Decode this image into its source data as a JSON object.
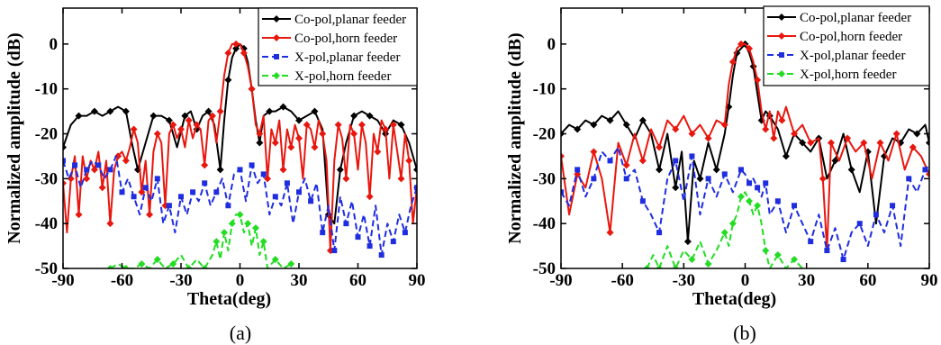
{
  "chart_data": [
    {
      "type": "line",
      "panel_label": "(a)",
      "xlabel": "Theta(deg)",
      "ylabel": "Normalized amplitude (dB)",
      "xlim": [
        -90,
        90
      ],
      "ylim": [
        -50,
        8
      ],
      "xticks": [
        -90,
        -60,
        -30,
        0,
        30,
        60,
        90
      ],
      "yticks": [
        0,
        -10,
        -20,
        -30,
        -40,
        -50
      ],
      "legend_position": "top-right",
      "series": [
        {
          "name": "Co-pol,planar feeder",
          "color": "#000000",
          "dash": "",
          "marker": "diamond",
          "x": [
            -90,
            -86,
            -82,
            -78,
            -74,
            -70,
            -66,
            -62,
            -58,
            -55,
            -52,
            -48,
            -44,
            -40,
            -36,
            -32,
            -28,
            -25,
            -22,
            -19,
            -16,
            -13,
            -10,
            -8,
            -6,
            -4,
            -2,
            0,
            2,
            4,
            6,
            8,
            10,
            12,
            15,
            18,
            22,
            26,
            30,
            34,
            38,
            42,
            45,
            48,
            51,
            54,
            58,
            62,
            66,
            70,
            74,
            78,
            82,
            86,
            90
          ],
          "y": [
            -23,
            -18,
            -16,
            -16,
            -15,
            -16,
            -15,
            -14,
            -15,
            -22,
            -28,
            -22,
            -16,
            -16,
            -17,
            -23,
            -16,
            -15,
            -19,
            -16,
            -15,
            -18,
            -28,
            -17,
            -8,
            -3,
            -1,
            0,
            -1,
            -4,
            -10,
            -17,
            -22,
            -16,
            -15,
            -15,
            -14,
            -15,
            -17,
            -16,
            -15,
            -19,
            -38,
            -40,
            -28,
            -22,
            -16,
            -15,
            -16,
            -17,
            -20,
            -17,
            -18,
            -22,
            -28
          ]
        },
        {
          "name": "Co-pol,horn feeder",
          "color": "#e8170e",
          "dash": "",
          "marker": "diamond",
          "x": [
            -90,
            -88,
            -86,
            -84,
            -82,
            -80,
            -78,
            -76,
            -74,
            -72,
            -70,
            -68,
            -66,
            -64,
            -62,
            -60,
            -58,
            -56,
            -54,
            -52,
            -50,
            -48,
            -46,
            -44,
            -42,
            -40,
            -38,
            -36,
            -34,
            -32,
            -30,
            -28,
            -26,
            -24,
            -22,
            -20,
            -18,
            -16,
            -14,
            -12,
            -10,
            -8,
            -6,
            -4,
            -2,
            0,
            2,
            4,
            6,
            8,
            10,
            12,
            14,
            16,
            18,
            20,
            22,
            24,
            26,
            28,
            30,
            32,
            34,
            36,
            38,
            40,
            42,
            44,
            46,
            48,
            50,
            52,
            54,
            56,
            58,
            60,
            62,
            64,
            66,
            68,
            70,
            72,
            74,
            76,
            78,
            80,
            82,
            84,
            86,
            88,
            90
          ],
          "y": [
            -31,
            -42,
            -30,
            -25,
            -38,
            -25,
            -30,
            -26,
            -28,
            -24,
            -32,
            -26,
            -40,
            -28,
            -25,
            -24,
            -26,
            -23,
            -19,
            -22,
            -33,
            -26,
            -38,
            -24,
            -20,
            -22,
            -36,
            -20,
            -18,
            -21,
            -19,
            -23,
            -17,
            -21,
            -18,
            -19,
            -27,
            -17,
            -16,
            -22,
            -15,
            -7,
            -2,
            0,
            0,
            0,
            -2,
            -5,
            -10,
            -18,
            -20,
            -16,
            -30,
            -19,
            -22,
            -17,
            -28,
            -19,
            -23,
            -18,
            -21,
            -30,
            -18,
            -19,
            -23,
            -17,
            -20,
            -26,
            -46,
            -26,
            -18,
            -21,
            -30,
            -18,
            -20,
            -28,
            -18,
            -22,
            -34,
            -20,
            -24,
            -17,
            -19,
            -30,
            -18,
            -24,
            -30,
            -20,
            -26,
            -40,
            -32
          ]
        },
        {
          "name": "X-pol,planar feeder",
          "color": "#1f2de0",
          "dash": "7,4",
          "marker": "square",
          "x": [
            -90,
            -87,
            -84,
            -81,
            -78,
            -75,
            -72,
            -69,
            -66,
            -63,
            -60,
            -57,
            -54,
            -51,
            -48,
            -45,
            -42,
            -39,
            -36,
            -33,
            -30,
            -27,
            -24,
            -21,
            -18,
            -15,
            -12,
            -9,
            -6,
            -3,
            0,
            3,
            6,
            9,
            12,
            15,
            18,
            21,
            24,
            27,
            30,
            33,
            36,
            39,
            42,
            45,
            48,
            51,
            54,
            57,
            60,
            63,
            66,
            69,
            72,
            75,
            78,
            81,
            84,
            87,
            90
          ],
          "y": [
            -26,
            -30,
            -27,
            -32,
            -28,
            -26,
            -27,
            -30,
            -28,
            -25,
            -33,
            -30,
            -34,
            -38,
            -32,
            -35,
            -30,
            -40,
            -36,
            -42,
            -34,
            -38,
            -33,
            -35,
            -31,
            -36,
            -33,
            -30,
            -36,
            -29,
            -28,
            -35,
            -27,
            -31,
            -29,
            -38,
            -34,
            -36,
            -31,
            -40,
            -33,
            -30,
            -35,
            -31,
            -42,
            -36,
            -46,
            -34,
            -40,
            -35,
            -43,
            -38,
            -45,
            -36,
            -47,
            -40,
            -44,
            -38,
            -42,
            -36,
            -32
          ]
        },
        {
          "name": "X-pol,horn feeder",
          "color": "#22dd22",
          "dash": "7,4",
          "marker": "diamond",
          "x": [
            -66,
            -62,
            -58,
            -54,
            -50,
            -46,
            -42,
            -38,
            -34,
            -30,
            -26,
            -22,
            -18,
            -14,
            -12,
            -10,
            -8,
            -6,
            -4,
            -2,
            0,
            2,
            4,
            6,
            8,
            10,
            12,
            14,
            18,
            22,
            26
          ],
          "y": [
            -50,
            -49,
            -50,
            -50,
            -49,
            -50,
            -48,
            -50,
            -49,
            -47,
            -50,
            -48,
            -50,
            -47,
            -44,
            -48,
            -42,
            -46,
            -40,
            -38,
            -38,
            -42,
            -40,
            -45,
            -41,
            -47,
            -44,
            -50,
            -48,
            -50,
            -49
          ]
        }
      ]
    },
    {
      "type": "line",
      "panel_label": "(b)",
      "xlabel": "Theta(deg)",
      "ylabel": "Normalized amplitude (dB)",
      "xlim": [
        -90,
        90
      ],
      "ylim": [
        -50,
        8
      ],
      "xticks": [
        -90,
        -60,
        -30,
        0,
        30,
        60,
        90
      ],
      "yticks": [
        0,
        -10,
        -20,
        -30,
        -40,
        -50
      ],
      "legend_position": "top-right",
      "series": [
        {
          "name": "Co-pol,planar feeder",
          "color": "#000000",
          "dash": "",
          "marker": "diamond",
          "x": [
            -90,
            -86,
            -82,
            -78,
            -74,
            -70,
            -66,
            -62,
            -58,
            -54,
            -50,
            -46,
            -42,
            -38,
            -34,
            -31,
            -28,
            -25,
            -22,
            -18,
            -14,
            -10,
            -8,
            -6,
            -4,
            -2,
            0,
            2,
            4,
            6,
            8,
            10,
            12,
            16,
            20,
            24,
            28,
            32,
            36,
            40,
            44,
            48,
            52,
            56,
            60,
            64,
            68,
            72,
            76,
            80,
            84,
            88,
            90
          ],
          "y": [
            -20,
            -18,
            -19,
            -17,
            -18,
            -16,
            -17,
            -15,
            -18,
            -21,
            -17,
            -20,
            -28,
            -20,
            -32,
            -24,
            -44,
            -26,
            -30,
            -22,
            -28,
            -20,
            -14,
            -7,
            -2,
            -1,
            0,
            -2,
            -5,
            -11,
            -17,
            -15,
            -16,
            -19,
            -25,
            -20,
            -22,
            -24,
            -21,
            -30,
            -26,
            -20,
            -28,
            -33,
            -24,
            -40,
            -25,
            -21,
            -22,
            -19,
            -20,
            -18,
            -22
          ]
        },
        {
          "name": "Co-pol,horn feeder",
          "color": "#e8170e",
          "dash": "",
          "marker": "diamond",
          "x": [
            -90,
            -86,
            -82,
            -78,
            -74,
            -70,
            -66,
            -62,
            -58,
            -54,
            -50,
            -46,
            -42,
            -38,
            -34,
            -30,
            -26,
            -22,
            -18,
            -14,
            -10,
            -8,
            -6,
            -4,
            -2,
            0,
            2,
            4,
            6,
            8,
            10,
            12,
            14,
            16,
            18,
            20,
            24,
            28,
            32,
            36,
            38,
            40,
            42,
            46,
            50,
            54,
            58,
            62,
            66,
            70,
            74,
            78,
            82,
            86,
            90
          ],
          "y": [
            -25,
            -38,
            -29,
            -32,
            -24,
            -30,
            -42,
            -22,
            -27,
            -20,
            -26,
            -19,
            -23,
            -17,
            -19,
            -16,
            -20,
            -18,
            -21,
            -17,
            -18,
            -9,
            -4,
            -1,
            0,
            0,
            -1,
            -4,
            -8,
            -15,
            -19,
            -15,
            -21,
            -15,
            -17,
            -14,
            -20,
            -18,
            -22,
            -21,
            -30,
            -46,
            -22,
            -26,
            -21,
            -24,
            -22,
            -30,
            -22,
            -26,
            -20,
            -28,
            -23,
            -25,
            -29
          ]
        },
        {
          "name": "X-pol,planar feeder",
          "color": "#1f2de0",
          "dash": "7,4",
          "marker": "square",
          "x": [
            -90,
            -86,
            -82,
            -78,
            -74,
            -70,
            -66,
            -62,
            -58,
            -54,
            -50,
            -46,
            -42,
            -38,
            -34,
            -30,
            -26,
            -22,
            -18,
            -14,
            -10,
            -6,
            -2,
            0,
            2,
            4,
            6,
            8,
            10,
            12,
            16,
            20,
            24,
            28,
            32,
            36,
            40,
            44,
            48,
            52,
            56,
            60,
            64,
            68,
            72,
            76,
            80,
            84,
            88,
            90
          ],
          "y": [
            -33,
            -36,
            -28,
            -34,
            -30,
            -24,
            -26,
            -23,
            -30,
            -28,
            -35,
            -38,
            -42,
            -30,
            -26,
            -35,
            -25,
            -38,
            -30,
            -34,
            -29,
            -33,
            -28,
            -29,
            -31,
            -30,
            -32,
            -34,
            -31,
            -38,
            -35,
            -42,
            -36,
            -40,
            -44,
            -38,
            -46,
            -41,
            -48,
            -42,
            -40,
            -45,
            -38,
            -42,
            -36,
            -45,
            -30,
            -33,
            -28,
            -27
          ]
        },
        {
          "name": "X-pol,horn feeder",
          "color": "#22dd22",
          "dash": "7,4",
          "marker": "diamond",
          "x": [
            -48,
            -45,
            -42,
            -38,
            -34,
            -30,
            -26,
            -22,
            -18,
            -14,
            -10,
            -8,
            -6,
            -4,
            -2,
            0,
            2,
            4,
            6,
            8,
            10,
            12,
            16,
            20,
            24,
            28
          ],
          "y": [
            -50,
            -47,
            -50,
            -45,
            -50,
            -46,
            -48,
            -44,
            -49,
            -46,
            -42,
            -45,
            -40,
            -38,
            -34,
            -33,
            -35,
            -38,
            -36,
            -40,
            -46,
            -50,
            -47,
            -50,
            -48,
            -50
          ]
        }
      ]
    }
  ]
}
